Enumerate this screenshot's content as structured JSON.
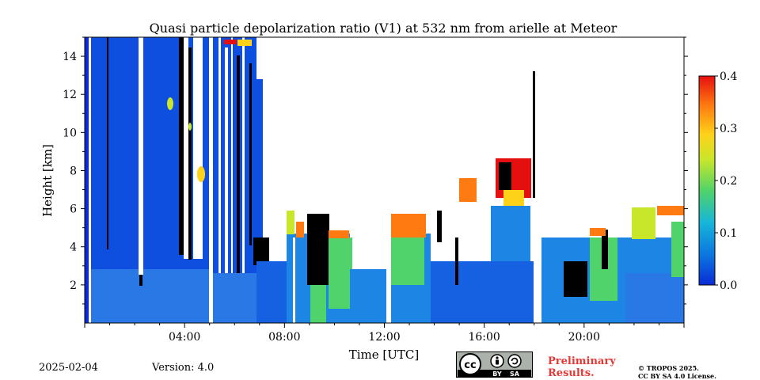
{
  "chart_data": {
    "type": "heatmap",
    "title": "Quasi particle depolarization ratio (V1) at 532 nm from arielle at Meteor",
    "xlabel": "Time [UTC]",
    "ylabel": "Height [km]",
    "x_ticks": [
      "04:00",
      "08:00",
      "12:00",
      "16:00",
      "20:00"
    ],
    "y_ticks": [
      "2",
      "4",
      "6",
      "8",
      "10",
      "12",
      "14"
    ],
    "xlim_hours": [
      0,
      24
    ],
    "ylim_km": [
      0,
      15
    ],
    "colorbar": {
      "ticks": [
        "0.0",
        "0.1",
        "0.2",
        "0.3",
        "0.4"
      ],
      "range": [
        0.0,
        0.4
      ],
      "colormap": [
        "#0a2bd6",
        "#0b74e0",
        "#17b6d9",
        "#4fd36a",
        "#c8e62a",
        "#ffd21a",
        "#ff7a10",
        "#e60f0f"
      ]
    },
    "legend_placement": "right colorbar"
  },
  "footer": {
    "date": "2025-02-04",
    "version": "Version: 4.0",
    "preliminary_line1": "Preliminary",
    "preliminary_line2": "Results.",
    "copyright_line1": "© TROPOS 2025.",
    "copyright_line2": "CC BY SA 4.0 License.",
    "cc_badge_labels": [
      "cc",
      "BY",
      "SA"
    ]
  }
}
